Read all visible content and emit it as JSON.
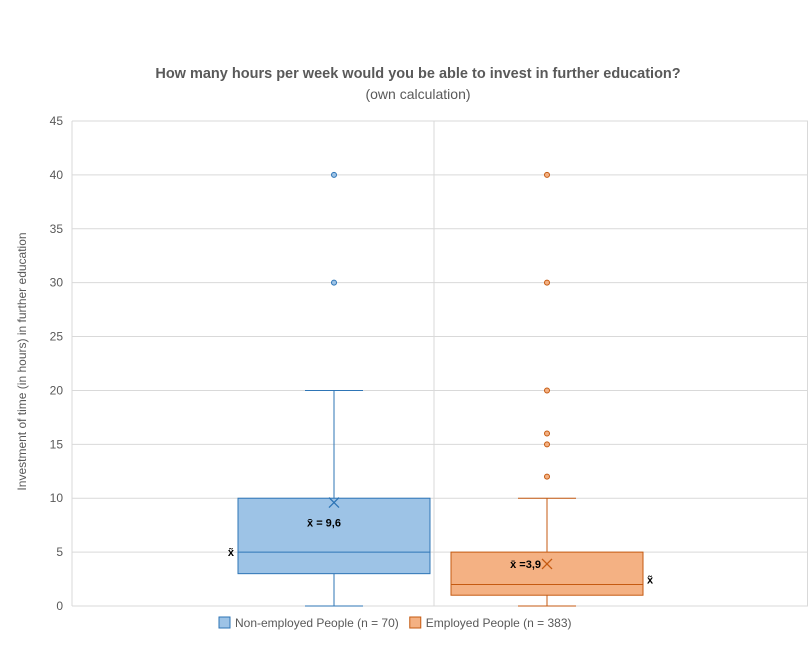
{
  "chart_data": {
    "type": "boxplot",
    "title": "How many hours per week would you be able to invest in further education?",
    "subtitle": "(own calculation)",
    "ylabel": "Investment of time (in hours) in further education",
    "ylim": [
      0,
      45
    ],
    "yticks": [
      0,
      5,
      10,
      15,
      20,
      25,
      30,
      35,
      40,
      45
    ],
    "grid": true,
    "legend_position": "bottom",
    "median_symbol": "x̃",
    "series": [
      {
        "name": "Non-employed People (n = 70)",
        "color": "#9DC3E6",
        "edge_color": "#2E75B6",
        "min": 0,
        "q1": 3,
        "median": 5,
        "q3": 10,
        "max": 20,
        "mean": 9.6,
        "mean_label": "x̄ = 9,6",
        "outliers": [
          30,
          40
        ]
      },
      {
        "name": "Employed People (n = 383)",
        "color": "#F4B183",
        "edge_color": "#C55A11",
        "min": 0,
        "q1": 1,
        "median": 2,
        "q3": 5,
        "max": 10,
        "mean": 3.9,
        "mean_label": "x̄ =3,9",
        "outliers": [
          12,
          15,
          16,
          20,
          30,
          40
        ]
      }
    ]
  }
}
